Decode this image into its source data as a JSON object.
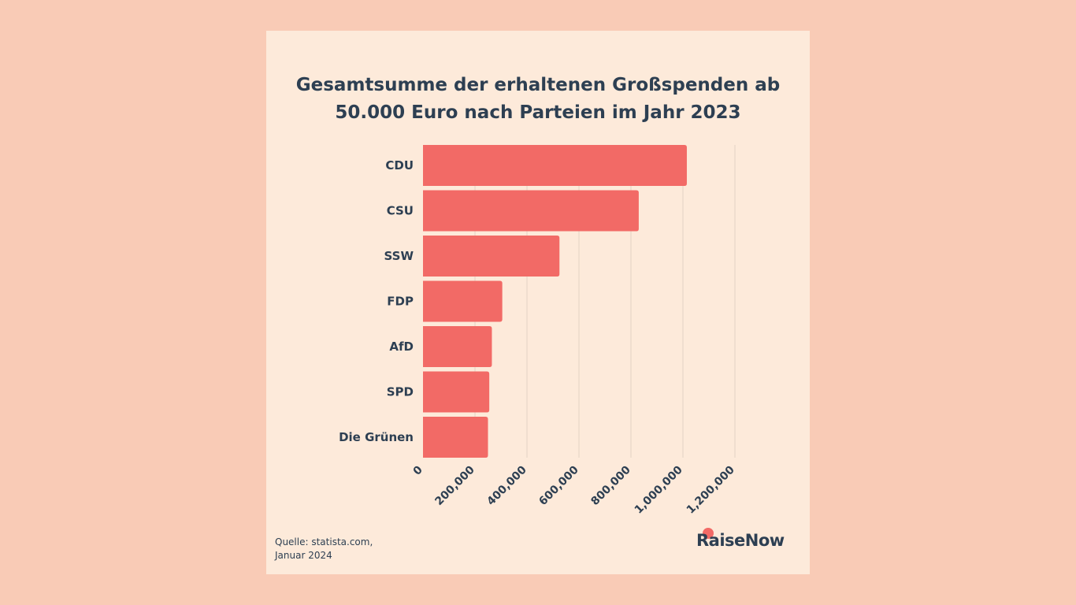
{
  "title_lines": [
    "Gesamtsumme der erhaltenen Großspenden ab",
    "50.000 Euro nach Parteien im Jahr 2023"
  ],
  "source_lines": [
    "Quelle: statista.com,",
    "Januar 2024"
  ],
  "logo_text": "RaiseNow",
  "colors": {
    "background": "#f9cbb6",
    "card": "#fdeada",
    "bar": "#f26a66",
    "text": "#2d3f52",
    "grid": "#e3d2c4"
  },
  "chart_data": {
    "type": "bar",
    "orientation": "horizontal",
    "categories": [
      "CDU",
      "CSU",
      "SSW",
      "FDP",
      "AfD",
      "SPD",
      "Die Grünen"
    ],
    "values": [
      1015000,
      830000,
      525000,
      305000,
      265000,
      255000,
      250000
    ],
    "xlim": [
      0,
      1200000
    ],
    "xticks": [
      0,
      200000,
      400000,
      600000,
      800000,
      1000000,
      1200000
    ],
    "xtick_labels": [
      "0",
      "200,000",
      "400,000",
      "600,000",
      "800,000",
      "1,000,000",
      "1,200,000"
    ],
    "grid": true
  }
}
